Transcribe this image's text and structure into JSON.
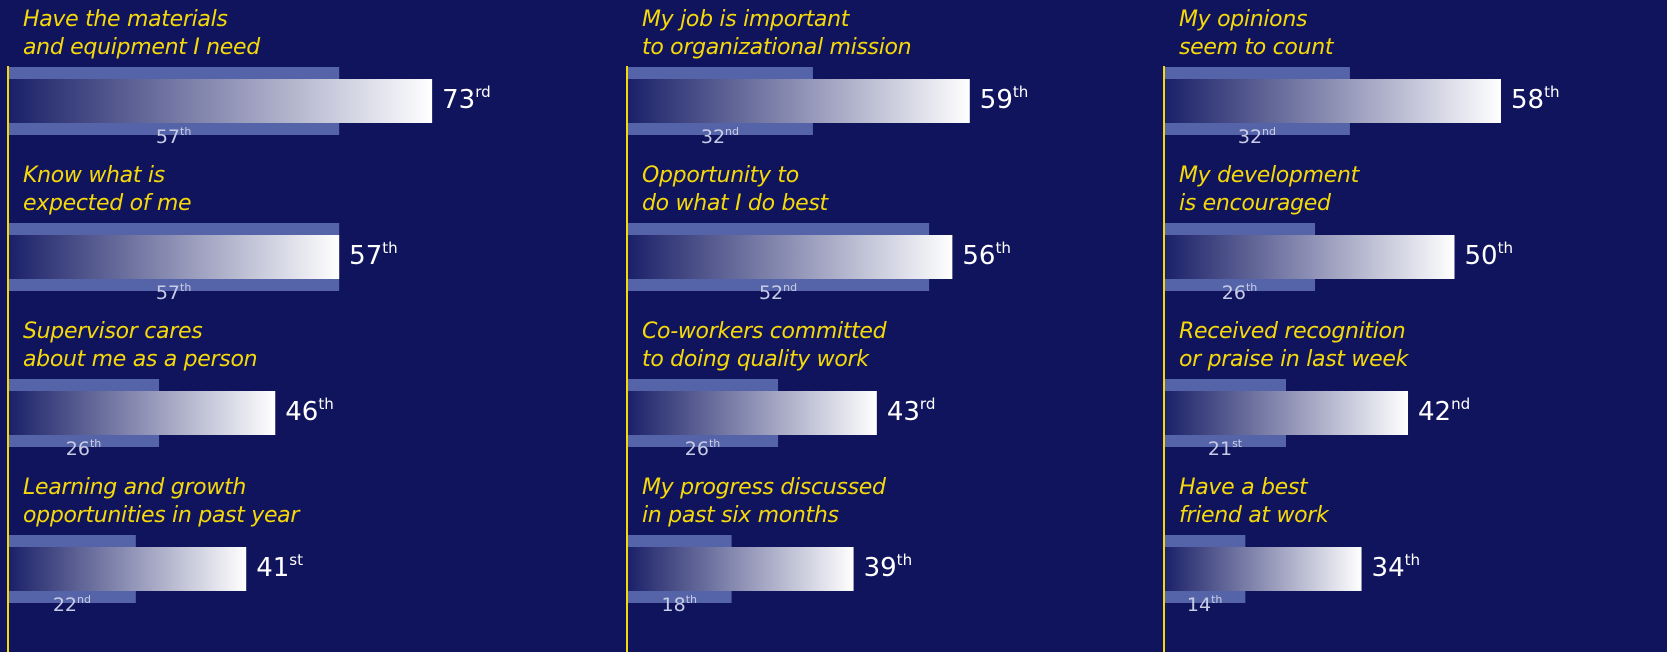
{
  "chart_data": [
    {
      "type": "bar",
      "orientation": "horizontal",
      "xlim": [
        0,
        100
      ],
      "categories": [
        "Have the materials\nand equipment I need",
        "Know what is\nexpected of me",
        "Supervisor cares\nabout me as a person",
        "Learning and growth\nopportunities in past year"
      ],
      "series": [
        {
          "color": "#ffffff",
          "values": [
            73,
            57,
            46,
            41
          ],
          "value_labels": [
            "73rd",
            "57th",
            "46th",
            "41st"
          ]
        },
        {
          "color": "#5564a8",
          "values": [
            57,
            57,
            26,
            22
          ],
          "value_labels": [
            "57th",
            "57th",
            "26th",
            "22nd"
          ]
        }
      ]
    },
    {
      "type": "bar",
      "orientation": "horizontal",
      "xlim": [
        0,
        100
      ],
      "categories": [
        "My job is important\nto organizational mission",
        "Opportunity to\ndo what I do best",
        "Co-workers committed\nto doing quality work",
        "My progress discussed\nin past six months"
      ],
      "series": [
        {
          "color": "#ffffff",
          "values": [
            59,
            56,
            43,
            39
          ],
          "value_labels": [
            "59th",
            "56th",
            "43rd",
            "39th"
          ]
        },
        {
          "color": "#5564a8",
          "values": [
            32,
            52,
            26,
            18
          ],
          "value_labels": [
            "32nd",
            "52nd",
            "26th",
            "18th"
          ]
        }
      ]
    },
    {
      "type": "bar",
      "orientation": "horizontal",
      "xlim": [
        0,
        100
      ],
      "categories": [
        "My opinions\nseem to count",
        "My development\nis encouraged",
        "Received recognition\nor praise in last week",
        "Have a best\nfriend at work"
      ],
      "series": [
        {
          "color": "#ffffff",
          "values": [
            58,
            50,
            42,
            34
          ],
          "value_labels": [
            "58th",
            "50th",
            "42nd",
            "34th"
          ]
        },
        {
          "color": "#5564a8",
          "values": [
            32,
            26,
            21,
            14
          ],
          "value_labels": [
            "32nd",
            "26th",
            "21st",
            "14th"
          ]
        }
      ]
    }
  ]
}
